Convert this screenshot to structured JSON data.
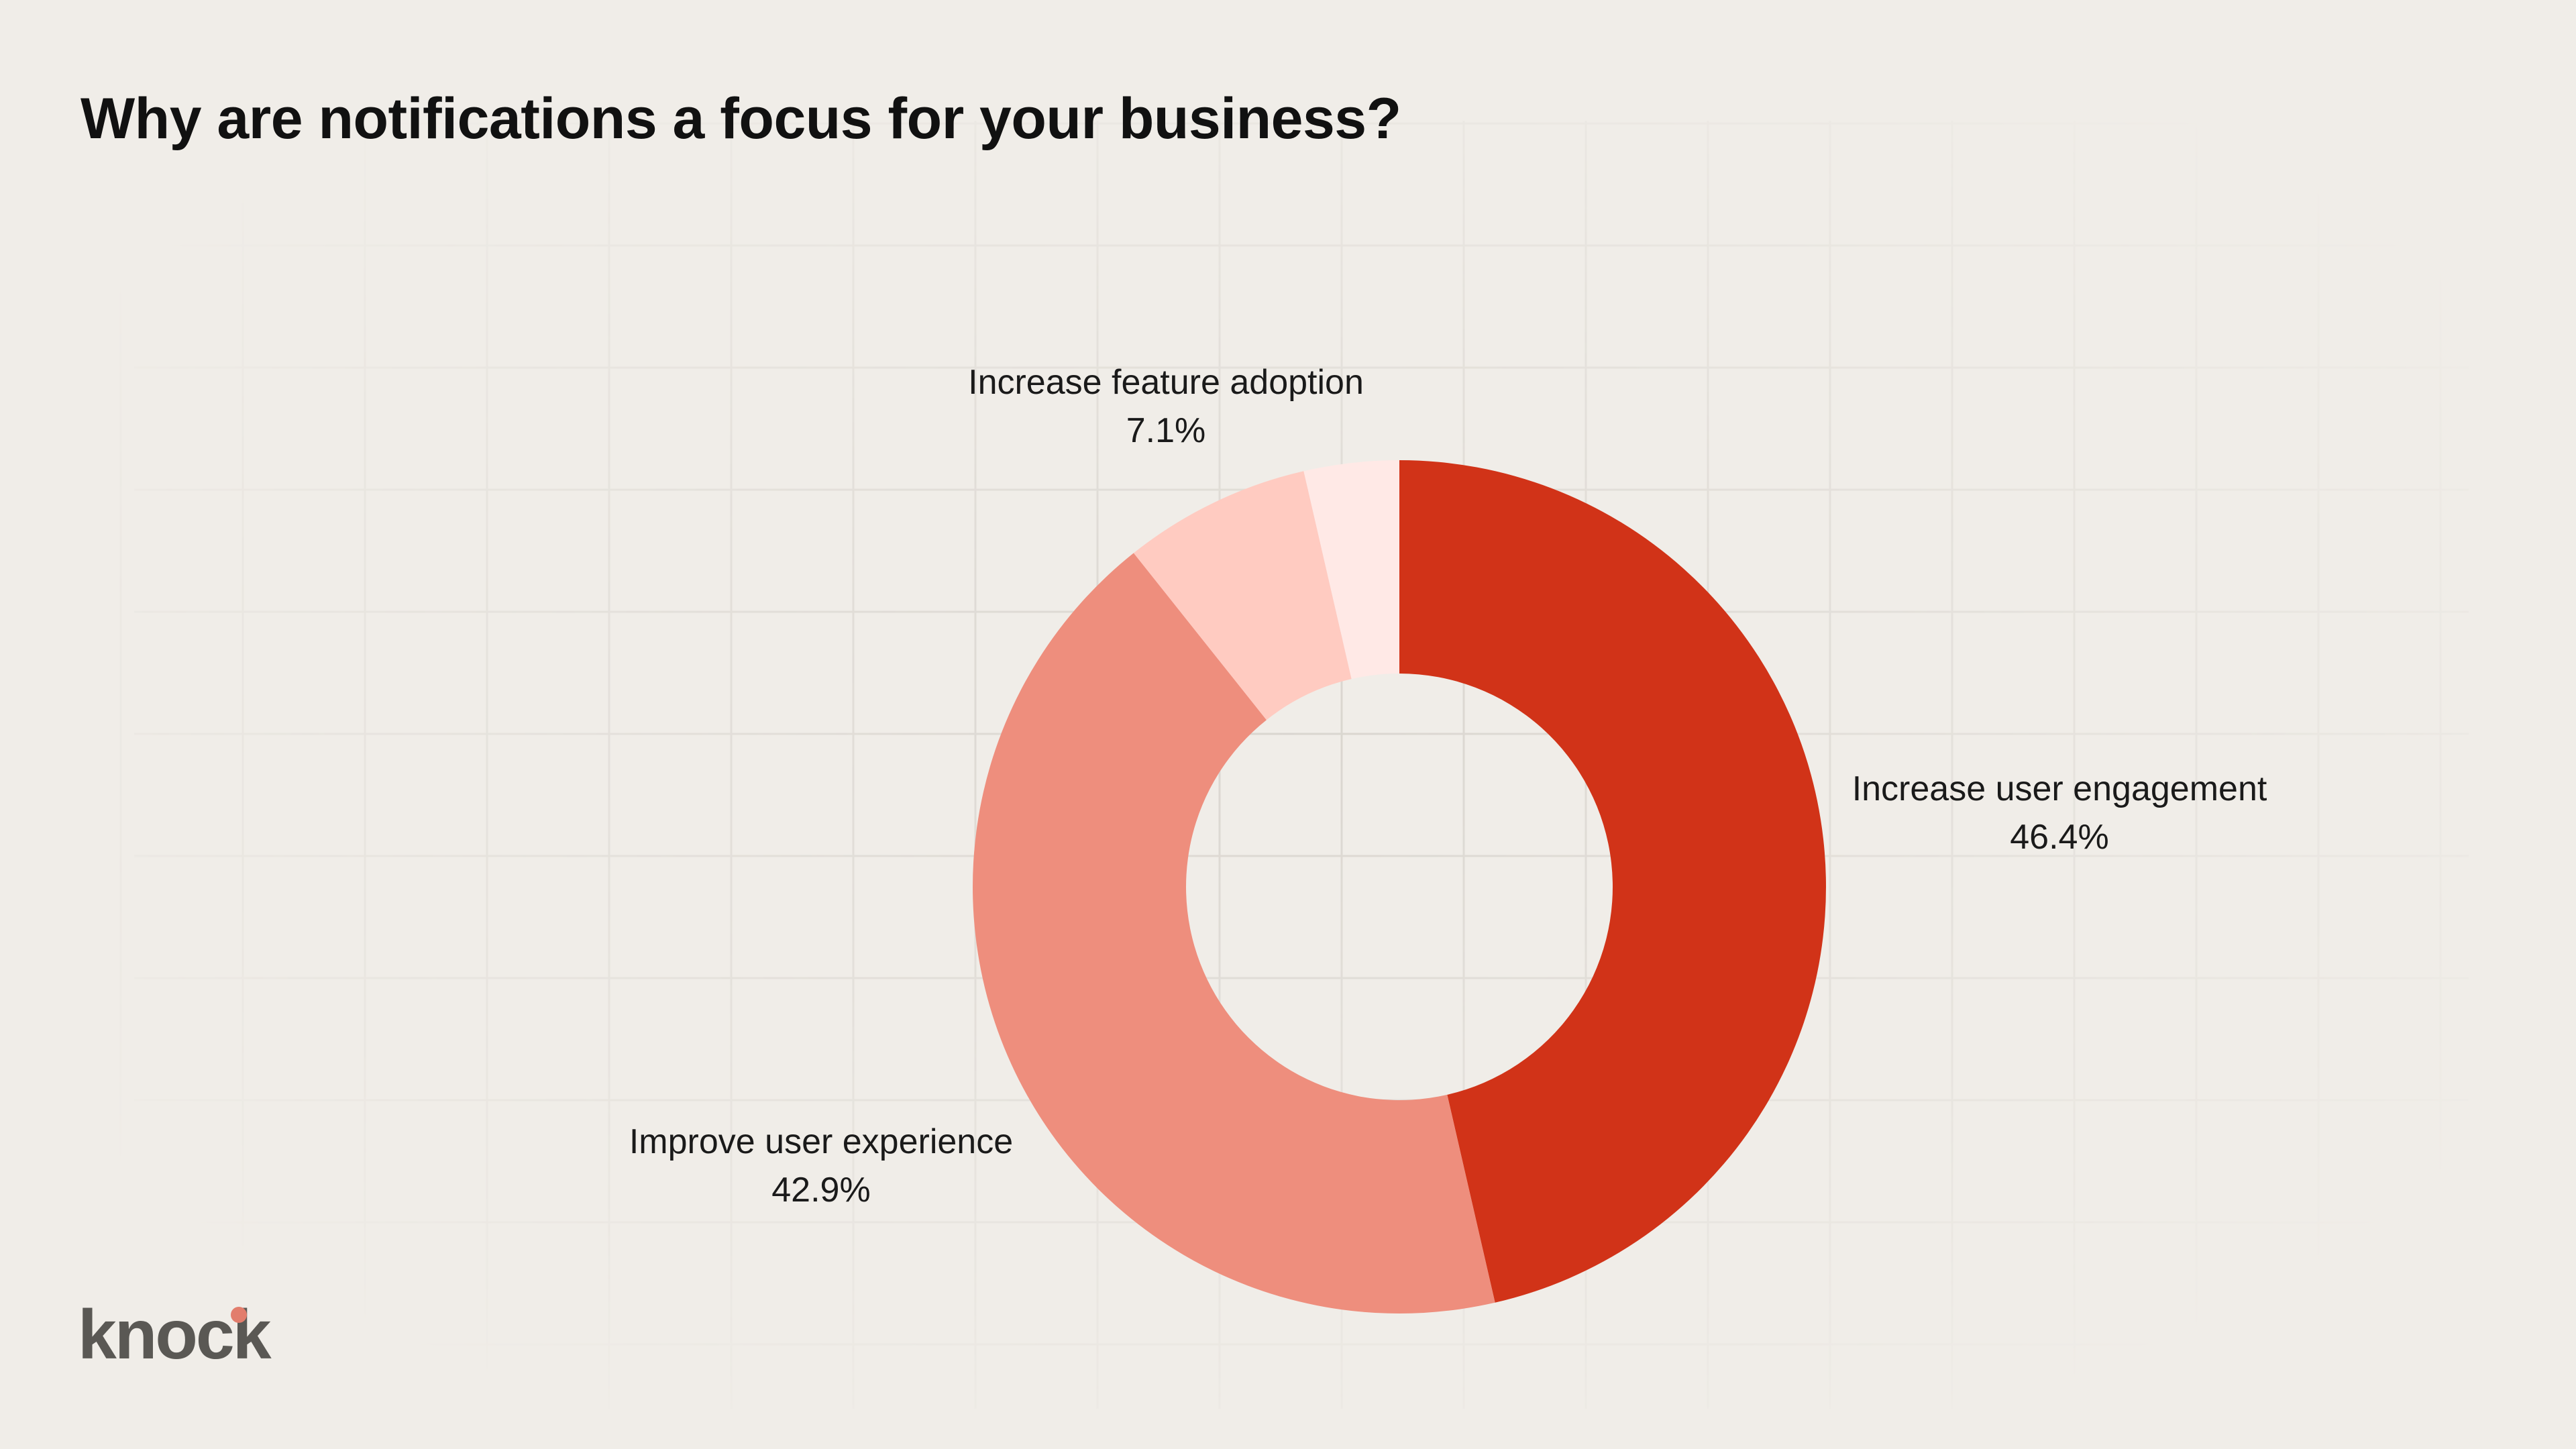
{
  "colors": {
    "background": "#f0ede8",
    "increase_user_engagement": "#d13318",
    "improve_user_experience": "#ee8e7d",
    "increase_feature_adoption": "#ffcbc1",
    "smallest_slice": "#ffe9e6",
    "logo_text": "#5a5854",
    "logo_dot": "#e27d6c"
  },
  "chart_data": {
    "type": "pie",
    "variant": "donut",
    "title": "Why are notifications a focus for your business?",
    "slices": [
      {
        "label": "Increase user engagement",
        "value": 46.4,
        "value_text": "46.4%",
        "color": "#d13318"
      },
      {
        "label": "Improve user experience",
        "value": 42.9,
        "value_text": "42.9%",
        "color": "#ee8e7d"
      },
      {
        "label": "Increase feature adoption",
        "value": 7.1,
        "value_text": "7.1%",
        "color": "#ffcbc1"
      },
      {
        "label": "",
        "value": 3.6,
        "value_text": "",
        "color": "#ffe9e6"
      }
    ],
    "legend": "none",
    "grid": false
  },
  "brand": {
    "logo_text": "knock"
  }
}
